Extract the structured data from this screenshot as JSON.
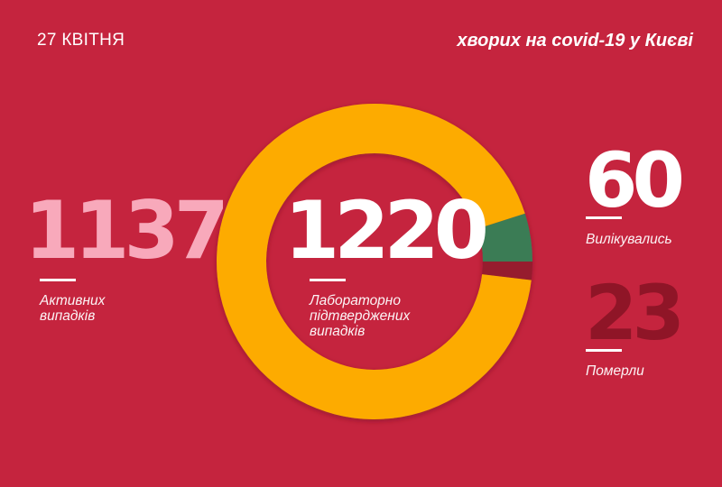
{
  "header": {
    "date": "27 КВІТНЯ",
    "subtitle": "хворих на covid-19 у Києві"
  },
  "stats": {
    "active": {
      "value": "1137",
      "label_line1": "Активних",
      "label_line2": "випадків",
      "color": "#f8a9bb"
    },
    "total": {
      "value": "1220",
      "label_line1": "Лабораторно",
      "label_line2": "підтверджених",
      "label_line3": "випадків",
      "color": "#ffffff"
    },
    "recovered": {
      "value": "60",
      "label": "Вилікувались",
      "color": "#ffffff"
    },
    "deaths": {
      "value": "23",
      "label": "Померли",
      "color": "#8f1527"
    }
  },
  "colors": {
    "background": "#c5243e",
    "active_segment": "#fdab00",
    "recovered_segment": "#3b7b55",
    "deaths_segment": "#961a2e"
  },
  "chart_data": {
    "type": "pie",
    "subtype": "donut",
    "title": "хворих на covid-19 у Києві",
    "subtitle": "27 КВІТНЯ",
    "center_label": "1220 Лабораторно підтверджених випадків",
    "categories": [
      "Активних випадків",
      "Вилікувались",
      "Померли"
    ],
    "values": [
      1137,
      60,
      23
    ],
    "total": 1220,
    "colors": [
      "#fdab00",
      "#3b7b55",
      "#961a2e"
    ]
  }
}
